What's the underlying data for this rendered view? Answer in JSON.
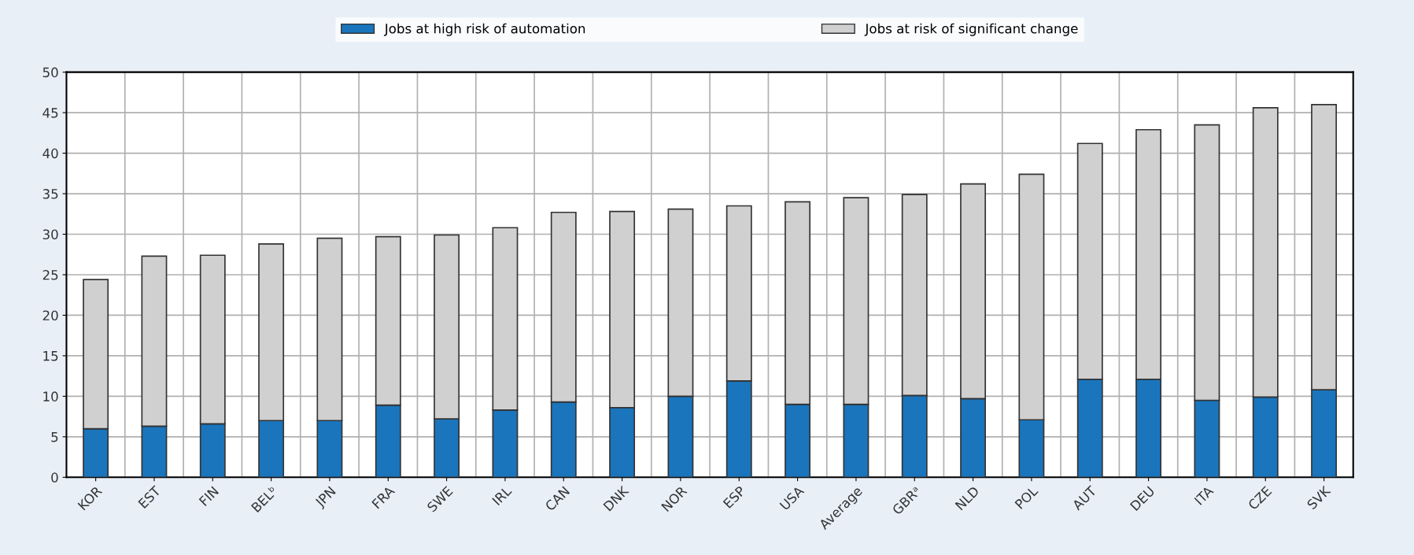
{
  "chart_data": {
    "type": "bar",
    "stacked": true,
    "categories": [
      "KOR",
      "EST",
      "FIN",
      "BELᵇ",
      "JPN",
      "FRA",
      "SWE",
      "IRL",
      "CAN",
      "DNK",
      "NOR",
      "ESP",
      "USA",
      "Average",
      "GBRᵃ",
      "NLD",
      "POL",
      "AUT",
      "DEU",
      "ITA",
      "CZE",
      "SVK"
    ],
    "series": [
      {
        "name": "Jobs at high risk of automation",
        "color": "#1a75bc",
        "values": [
          6.0,
          6.3,
          6.6,
          7.0,
          7.0,
          8.9,
          7.2,
          8.3,
          9.3,
          8.6,
          10.0,
          11.9,
          9.0,
          9.0,
          10.1,
          9.7,
          7.1,
          12.1,
          12.1,
          9.5,
          9.9,
          10.8
        ]
      },
      {
        "name": "Jobs at risk of significant change",
        "color": "#d0d0d0",
        "values": [
          18.4,
          21.0,
          20.8,
          21.8,
          22.5,
          20.8,
          22.7,
          22.5,
          23.4,
          24.2,
          23.1,
          21.6,
          25.0,
          25.5,
          24.8,
          26.5,
          30.3,
          29.1,
          30.8,
          34.0,
          35.7,
          35.2
        ]
      }
    ],
    "ylim": [
      0,
      50
    ],
    "yticks": [
      0,
      5,
      10,
      15,
      20,
      25,
      30,
      35,
      40,
      45,
      50
    ],
    "grid": true,
    "legend": "top"
  }
}
